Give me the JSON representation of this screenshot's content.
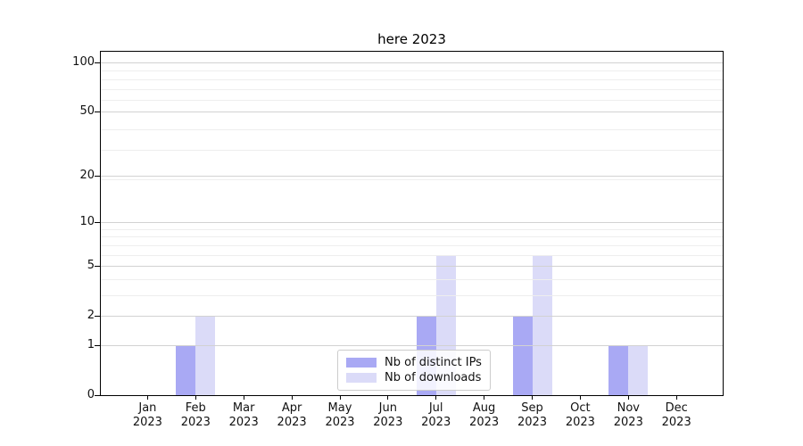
{
  "title": "here 2023",
  "chart_data": {
    "type": "bar",
    "title": "here 2023",
    "categories": [
      "Jan",
      "Feb",
      "Mar",
      "Apr",
      "May",
      "Jun",
      "Jul",
      "Aug",
      "Sep",
      "Oct",
      "Nov",
      "Dec"
    ],
    "category_year": "2023",
    "series": [
      {
        "name": "Nb of distinct IPs",
        "color": "#a9a9f4",
        "values": [
          0,
          1,
          0,
          0,
          0,
          0,
          2,
          0,
          2,
          0,
          1,
          0
        ]
      },
      {
        "name": "Nb of downloads",
        "color": "#dbdbf8",
        "values": [
          0,
          2,
          0,
          0,
          0,
          0,
          6,
          0,
          6,
          0,
          1,
          0
        ]
      }
    ],
    "y_axis": {
      "scale": "log1p",
      "range": [
        0,
        100
      ],
      "ticks": [
        0,
        1,
        2,
        5,
        10,
        20,
        50,
        100
      ],
      "minor_ticks": [
        3,
        4,
        6,
        7,
        8,
        9,
        19,
        29,
        39,
        59,
        69,
        79,
        89
      ]
    },
    "grid": {
      "major_color": "#d2d2d2",
      "minor_color": "#eeeeee",
      "major_on": true,
      "minor_on": true
    },
    "legend": {
      "position": "lower-center",
      "items": [
        "Nb of distinct IPs",
        "Nb of downloads"
      ]
    }
  }
}
